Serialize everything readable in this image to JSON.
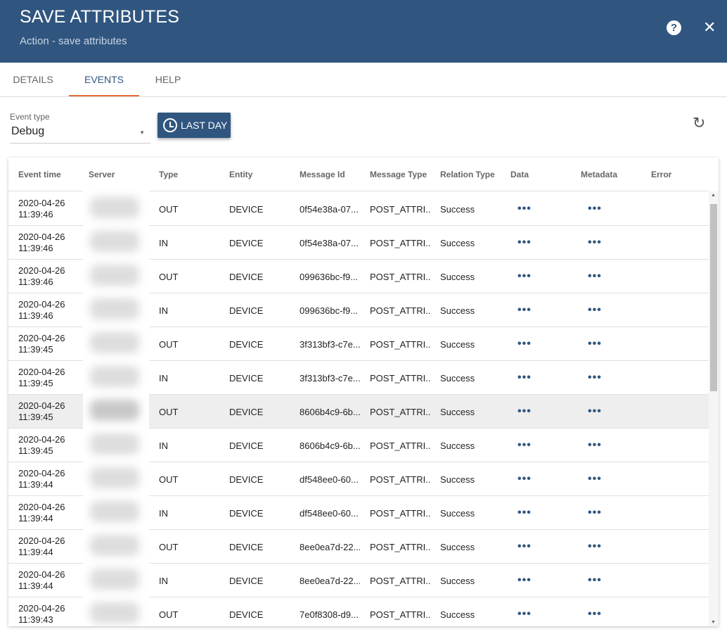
{
  "header": {
    "title": "SAVE ATTRIBUTES",
    "subtitle": "Action - save attributes",
    "help_icon": "?",
    "close_icon": "✕"
  },
  "tabs": [
    {
      "label": "DETAILS"
    },
    {
      "label": "EVENTS"
    },
    {
      "label": "HELP"
    }
  ],
  "filter": {
    "event_type_label": "Event type",
    "event_type_value": "Debug",
    "time_button": "LAST DAY",
    "refresh_icon": "↻"
  },
  "table": {
    "columns": [
      "Event time",
      "Server",
      "Type",
      "Entity",
      "Message Id",
      "Message Type",
      "Relation Type",
      "Data",
      "Metadata",
      "Error"
    ],
    "rows": [
      {
        "date": "2020-04-26",
        "time": "11:39:46",
        "type": "OUT",
        "entity": "DEVICE",
        "msg_id": "0f54e38a-07...",
        "msg_type": "POST_ATTRI...",
        "relation": "Success",
        "data": "•••",
        "metadata": "•••"
      },
      {
        "date": "2020-04-26",
        "time": "11:39:46",
        "type": "IN",
        "entity": "DEVICE",
        "msg_id": "0f54e38a-07...",
        "msg_type": "POST_ATTRI...",
        "relation": "Success",
        "data": "•••",
        "metadata": "•••"
      },
      {
        "date": "2020-04-26",
        "time": "11:39:46",
        "type": "OUT",
        "entity": "DEVICE",
        "msg_id": "099636bc-f9...",
        "msg_type": "POST_ATTRI...",
        "relation": "Success",
        "data": "•••",
        "metadata": "•••"
      },
      {
        "date": "2020-04-26",
        "time": "11:39:46",
        "type": "IN",
        "entity": "DEVICE",
        "msg_id": "099636bc-f9...",
        "msg_type": "POST_ATTRI...",
        "relation": "Success",
        "data": "•••",
        "metadata": "•••"
      },
      {
        "date": "2020-04-26",
        "time": "11:39:45",
        "type": "OUT",
        "entity": "DEVICE",
        "msg_id": "3f313bf3-c7e...",
        "msg_type": "POST_ATTRI...",
        "relation": "Success",
        "data": "•••",
        "metadata": "•••"
      },
      {
        "date": "2020-04-26",
        "time": "11:39:45",
        "type": "IN",
        "entity": "DEVICE",
        "msg_id": "3f313bf3-c7e...",
        "msg_type": "POST_ATTRI...",
        "relation": "Success",
        "data": "•••",
        "metadata": "•••"
      },
      {
        "date": "2020-04-26",
        "time": "11:39:45",
        "type": "OUT",
        "entity": "DEVICE",
        "msg_id": "8606b4c9-6b...",
        "msg_type": "POST_ATTRI...",
        "relation": "Success",
        "data": "•••",
        "metadata": "•••"
      },
      {
        "date": "2020-04-26",
        "time": "11:39:45",
        "type": "IN",
        "entity": "DEVICE",
        "msg_id": "8606b4c9-6b...",
        "msg_type": "POST_ATTRI...",
        "relation": "Success",
        "data": "•••",
        "metadata": "•••"
      },
      {
        "date": "2020-04-26",
        "time": "11:39:44",
        "type": "OUT",
        "entity": "DEVICE",
        "msg_id": "df548ee0-60...",
        "msg_type": "POST_ATTRI...",
        "relation": "Success",
        "data": "•••",
        "metadata": "•••"
      },
      {
        "date": "2020-04-26",
        "time": "11:39:44",
        "type": "IN",
        "entity": "DEVICE",
        "msg_id": "df548ee0-60...",
        "msg_type": "POST_ATTRI...",
        "relation": "Success",
        "data": "•••",
        "metadata": "•••"
      },
      {
        "date": "2020-04-26",
        "time": "11:39:44",
        "type": "OUT",
        "entity": "DEVICE",
        "msg_id": "8ee0ea7d-22...",
        "msg_type": "POST_ATTRI...",
        "relation": "Success",
        "data": "•••",
        "metadata": "•••"
      },
      {
        "date": "2020-04-26",
        "time": "11:39:44",
        "type": "IN",
        "entity": "DEVICE",
        "msg_id": "8ee0ea7d-22...",
        "msg_type": "POST_ATTRI...",
        "relation": "Success",
        "data": "•••",
        "metadata": "•••"
      },
      {
        "date": "2020-04-26",
        "time": "11:39:43",
        "type": "OUT",
        "entity": "DEVICE",
        "msg_id": "7e0f8308-d9...",
        "msg_type": "POST_ATTRI...",
        "relation": "Success",
        "data": "•••",
        "metadata": "•••"
      }
    ]
  },
  "colors": {
    "primary": "#305680",
    "accent": "#e96c3b"
  }
}
